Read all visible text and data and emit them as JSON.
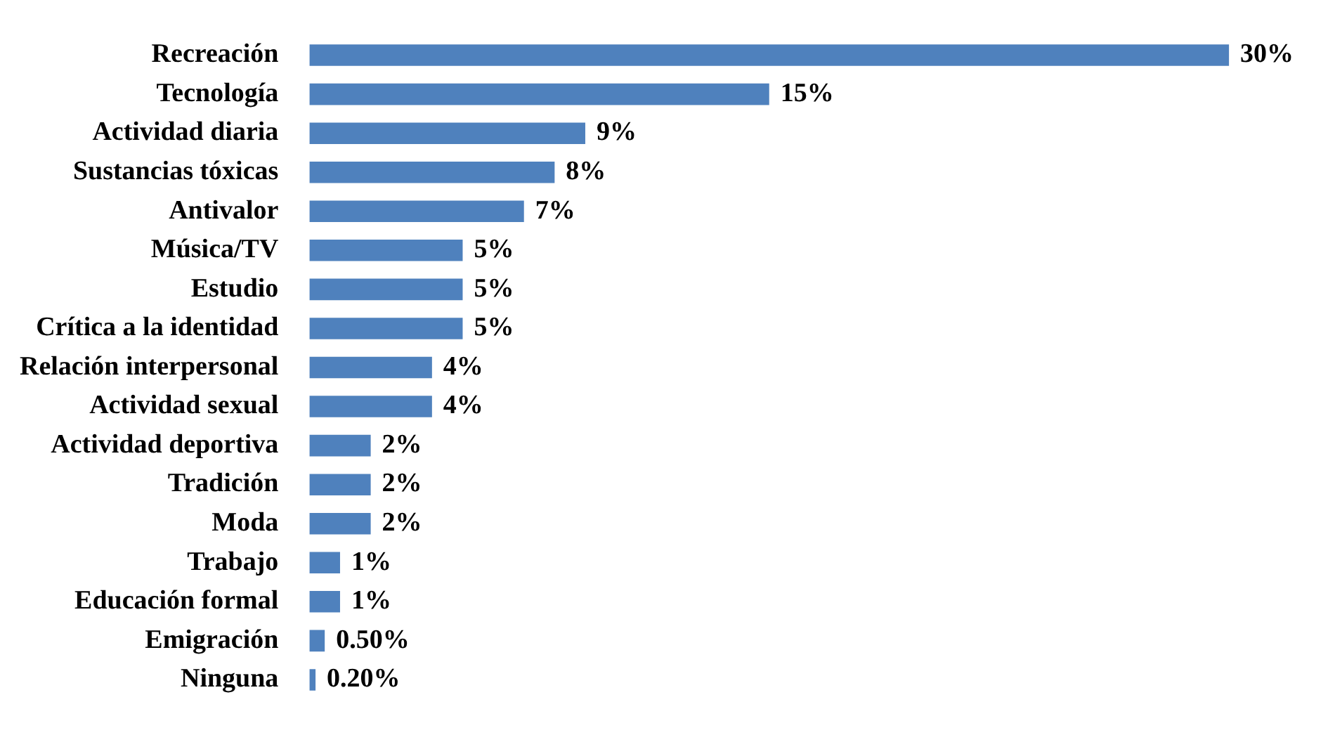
{
  "chart_data": {
    "type": "bar",
    "orientation": "horizontal",
    "categories": [
      "Recreación",
      "Tecnología",
      "Actividad diaria",
      "Sustancias tóxicas",
      "Antivalor",
      "Música/TV",
      "Estudio",
      "Crítica a la identidad",
      "Relación interpersonal",
      "Actividad sexual",
      "Actividad deportiva",
      "Tradición",
      "Moda",
      "Trabajo",
      "Educación formal",
      "Emigración",
      "Ninguna"
    ],
    "values": [
      30,
      15,
      9,
      8,
      7,
      5,
      5,
      5,
      4,
      4,
      2,
      2,
      2,
      1,
      1,
      0.5,
      0.2
    ],
    "value_labels": [
      "30%",
      "15%",
      "9%",
      "8%",
      "7%",
      "5%",
      "5%",
      "5%",
      "4%",
      "4%",
      "2%",
      "2%",
      "2%",
      "1%",
      "1%",
      "0.50%",
      "0.20%"
    ],
    "color": "#4f81bd",
    "legend": false
  }
}
